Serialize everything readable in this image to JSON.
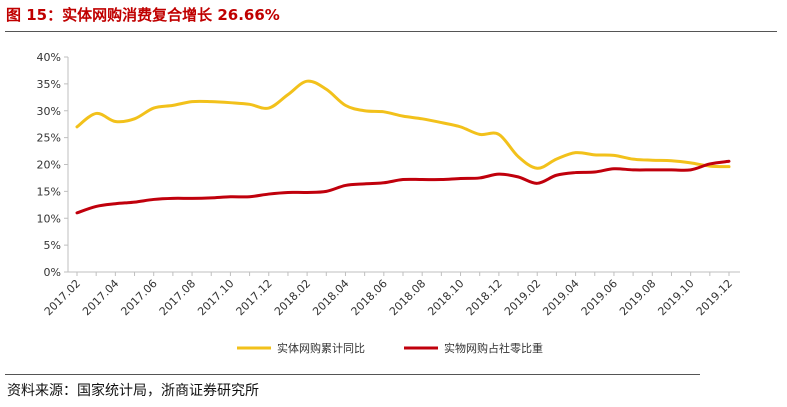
{
  "header": {
    "title": "图 15：实体网购消费复合增长 26.66%"
  },
  "footer": {
    "source": "资料来源：国家统计局，浙商证券研究所"
  },
  "colors": {
    "title": "#c00000",
    "series1": "#f2c11b",
    "series2": "#c0000c"
  },
  "chart_data": {
    "type": "line",
    "title": "",
    "xlabel": "",
    "ylabel": "",
    "ylim": [
      0,
      0.4
    ],
    "y_ticks": [
      "0%",
      "5%",
      "10%",
      "15%",
      "20%",
      "25%",
      "30%",
      "35%",
      "40%"
    ],
    "x": [
      "2017.02",
      "2017.03",
      "2017.04",
      "2017.05",
      "2017.06",
      "2017.07",
      "2017.08",
      "2017.09",
      "2017.10",
      "2017.11",
      "2017.12",
      "2018.01",
      "2018.02",
      "2018.03",
      "2018.04",
      "2018.05",
      "2018.06",
      "2018.07",
      "2018.08",
      "2018.09",
      "2018.10",
      "2018.11",
      "2018.12",
      "2019.01",
      "2019.02",
      "2019.03",
      "2019.04",
      "2019.05",
      "2019.06",
      "2019.07",
      "2019.08",
      "2019.09",
      "2019.10",
      "2019.11",
      "2019.12"
    ],
    "x_tick_labels": [
      "2017.02",
      "2017.04",
      "2017.06",
      "2017.08",
      "2017.10",
      "2017.12",
      "2018.02",
      "2018.04",
      "2018.06",
      "2018.08",
      "2018.10",
      "2018.12",
      "2019.02",
      "2019.04",
      "2019.06",
      "2019.08",
      "2019.10",
      "2019.12"
    ],
    "grid": false,
    "legend_position": "bottom",
    "series": [
      {
        "name": "实体网购累计同比",
        "color": "#f2c11b",
        "values": [
          0.27,
          0.295,
          0.28,
          0.285,
          0.305,
          0.31,
          0.317,
          0.317,
          0.315,
          0.312,
          0.305,
          0.33,
          0.355,
          0.34,
          0.31,
          0.3,
          0.298,
          0.29,
          0.285,
          0.278,
          0.27,
          0.256,
          0.256,
          0.215,
          0.193,
          0.21,
          0.222,
          0.218,
          0.217,
          0.21,
          0.208,
          0.207,
          0.203,
          0.197,
          0.196
        ]
      },
      {
        "name": "实物网购占社零比重",
        "color": "#c0000c",
        "values": [
          0.11,
          0.122,
          0.127,
          0.13,
          0.135,
          0.137,
          0.137,
          0.138,
          0.14,
          0.14,
          0.145,
          0.148,
          0.148,
          0.15,
          0.161,
          0.164,
          0.166,
          0.172,
          0.172,
          0.172,
          0.174,
          0.175,
          0.182,
          0.177,
          0.165,
          0.18,
          0.185,
          0.186,
          0.192,
          0.19,
          0.19,
          0.19,
          0.19,
          0.201,
          0.206
        ]
      }
    ]
  }
}
